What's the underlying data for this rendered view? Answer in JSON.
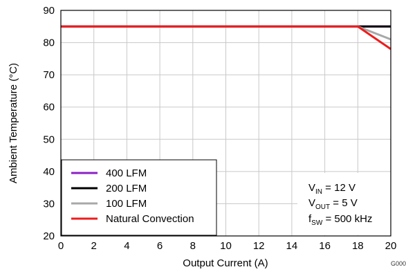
{
  "chart_data": {
    "type": "line",
    "title": "",
    "xlabel": "Output Current (A)",
    "ylabel": "Ambient Temperature (°C)",
    "xlim": [
      0,
      20
    ],
    "ylim": [
      20,
      90
    ],
    "xticks": [
      0,
      2,
      4,
      6,
      8,
      10,
      12,
      14,
      16,
      18,
      20
    ],
    "yticks": [
      20,
      30,
      40,
      50,
      60,
      70,
      80,
      90
    ],
    "grid": true,
    "legend_position": "bottom-left",
    "series": [
      {
        "name": "400 LFM",
        "color": "#8b1fc7",
        "x": [
          0,
          20
        ],
        "y": [
          85,
          85
        ]
      },
      {
        "name": "200 LFM",
        "color": "#000000",
        "x": [
          0,
          20
        ],
        "y": [
          85,
          85
        ]
      },
      {
        "name": "100 LFM",
        "color": "#a8a8a8",
        "x": [
          0,
          18,
          20
        ],
        "y": [
          85,
          85,
          81
        ]
      },
      {
        "name": "Natural Convection",
        "color": "#ee1c1c",
        "x": [
          0,
          18,
          20
        ],
        "y": [
          85,
          85,
          78
        ]
      }
    ],
    "conditions": {
      "vin": {
        "main": "V",
        "sub": "IN",
        "rest": " = 12 V"
      },
      "vout": {
        "main": "V",
        "sub": "OUT",
        "rest": " = 5 V"
      },
      "fsw": {
        "main": "f",
        "sub": "SW",
        "rest": " = 500 kHz"
      }
    },
    "figure_id": "G000"
  }
}
